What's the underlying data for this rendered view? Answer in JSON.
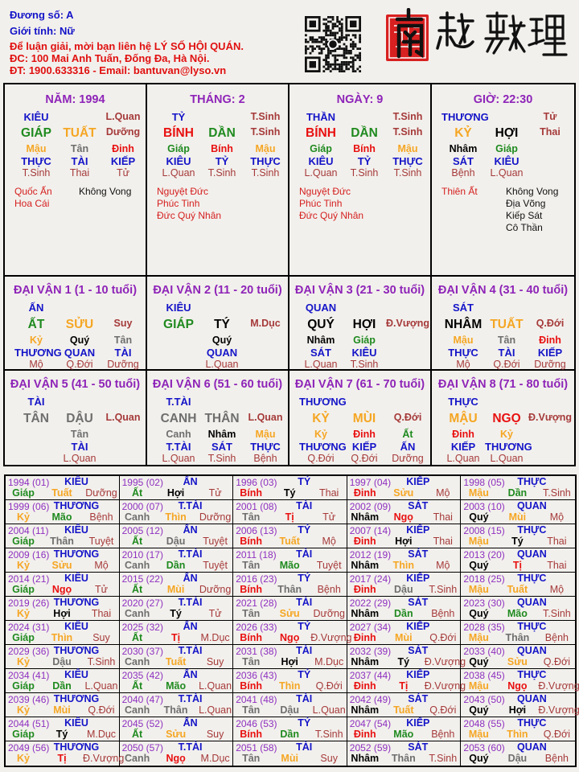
{
  "header": {
    "duong_so": "Đương số: A",
    "gioi_tinh": "Giới tính:   Nữ",
    "contact_1": "Để luận giải, mời bạn liên hệ LÝ SỐ HỘI QUÁN.",
    "contact_2": "ĐC: 100 Mai Anh Tuấn, Đống Đa, Hà Nội.",
    "contact_3": "ĐT: 1900.633316 - Email: bantuvan@lyso.vn"
  },
  "logo_text": "南越數理",
  "colors": {
    "label_blue": "#1414c8",
    "title_purple": "#8e24b8",
    "stage_darkred": "#a53a3a",
    "star_red": "#d42020",
    "wood": "#1f8a1f",
    "fire": "#e81010",
    "earth": "#f5a623",
    "metal": "#6e6e6e",
    "water": "#000000"
  },
  "pillars": [
    {
      "title": "NĂM: 1994",
      "label": "KIÊU",
      "stage_top": "L.Quan",
      "can": "GIÁP",
      "chi": "TUẤT",
      "stage": "Dưỡng",
      "hidden": [
        [
          "Mậu",
          "THỰC",
          "T.Sinh"
        ],
        [
          "Tân",
          "TÀI",
          "Thai"
        ],
        [
          "Đinh",
          "KIẾP",
          "Tử"
        ]
      ],
      "stars_left": [
        "Quốc Ấn",
        "Hoa Cái"
      ],
      "stars_right": [
        "Không Vong"
      ]
    },
    {
      "title": "THÁNG: 2",
      "label": "TỶ",
      "stage_top": "T.Sinh",
      "can": "BÍNH",
      "chi": "DẦN",
      "stage": "T.Sinh",
      "hidden": [
        [
          "Giáp",
          "KIÊU",
          "L.Quan"
        ],
        [
          "Bính",
          "TỶ",
          "T.Sinh"
        ],
        [
          "Mậu",
          "THỰC",
          "T.Sinh"
        ]
      ],
      "stars_left": [
        "Nguyệt Đức",
        "Phúc Tinh",
        "Đức Quý Nhân"
      ],
      "stars_right": []
    },
    {
      "title": "NGÀY: 9",
      "label": "THẦN",
      "stage_top": "T.Sinh",
      "can": "BÍNH",
      "chi": "DẦN",
      "stage": "T.Sinh",
      "hidden": [
        [
          "Giáp",
          "KIÊU",
          "L.Quan"
        ],
        [
          "Bính",
          "TỶ",
          "T.Sinh"
        ],
        [
          "Mậu",
          "THỰC",
          "T.Sinh"
        ]
      ],
      "stars_left": [
        "Nguyệt Đức",
        "Phúc Tinh",
        "Đức Quý Nhân"
      ],
      "stars_right": []
    },
    {
      "title": "GIỜ: 22:30",
      "label": "THƯƠNG",
      "stage_top": "Tử",
      "can": "KỶ",
      "chi": "HỢI",
      "stage": "Thai",
      "hidden": [
        [
          "Nhâm",
          "SÁT",
          "Bệnh"
        ],
        [
          "Giáp",
          "KIÊU",
          "L.Quan"
        ],
        null
      ],
      "stars_left": [
        "Thiên Ất"
      ],
      "stars_right": [
        "Không Vong",
        "Địa Võng",
        "Kiếp Sát",
        "Cô Thần"
      ]
    }
  ],
  "dai_van": [
    {
      "title": "ĐẠI VẬN 1 (1 - 10 tuổi)",
      "label": "ẤN",
      "can": "ẤT",
      "chi": "SỬU",
      "stage": "Suy",
      "hidden": [
        [
          "Kỷ",
          "THƯƠNG",
          "Mộ"
        ],
        [
          "Quý",
          "QUAN",
          "Q.Đới"
        ],
        [
          "Tân",
          "TÀI",
          "Dưỡng"
        ]
      ]
    },
    {
      "title": "ĐẠI VẬN 2 (11 - 20 tuổi)",
      "label": "KIÊU",
      "can": "GIÁP",
      "chi": "TÝ",
      "stage": "M.Dục",
      "hidden": [
        null,
        [
          "Quý",
          "QUAN",
          "L.Quan"
        ],
        null
      ]
    },
    {
      "title": "ĐẠI VẬN 3 (21 - 30 tuổi)",
      "label": "QUAN",
      "can": "QUÝ",
      "chi": "HỢI",
      "stage": "Đ.Vượng",
      "hidden": [
        [
          "Nhâm",
          "SÁT",
          "L.Quan"
        ],
        [
          "Giáp",
          "KIÊU",
          "T.Sinh"
        ],
        null
      ]
    },
    {
      "title": "ĐẠI VẬN 4 (31 - 40 tuổi)",
      "label": "SÁT",
      "can": "NHÂM",
      "chi": "TUẤT",
      "stage": "Q.Đới",
      "hidden": [
        [
          "Mậu",
          "THỰC",
          "Mộ"
        ],
        [
          "Tân",
          "TÀI",
          "Q.Đới"
        ],
        [
          "Đinh",
          "KIẾP",
          "Dưỡng"
        ]
      ]
    },
    {
      "title": "ĐẠI VẬN 5 (41 - 50 tuổi)",
      "label": "TÀI",
      "can": "TÂN",
      "chi": "DẬU",
      "stage": "L.Quan",
      "hidden": [
        null,
        [
          "Tân",
          "TÀI",
          "L.Quan"
        ],
        null
      ]
    },
    {
      "title": "ĐẠI VẬN 6 (51 - 60 tuổi)",
      "label": "T.TÀI",
      "can": "CANH",
      "chi": "THÂN",
      "stage": "L.Quan",
      "hidden": [
        [
          "Canh",
          "T.TÀI",
          "L.Quan"
        ],
        [
          "Nhâm",
          "SÁT",
          "T.Sinh"
        ],
        [
          "Mậu",
          "THỰC",
          "Bệnh"
        ]
      ]
    },
    {
      "title": "ĐẠI VẬN 7 (61 - 70 tuổi)",
      "label": "THƯƠNG",
      "can": "KỶ",
      "chi": "MÙI",
      "stage": "Q.Đới",
      "hidden": [
        [
          "Kỷ",
          "THƯƠNG",
          "Q.Đới"
        ],
        [
          "Đinh",
          "KIẾP",
          "Q.Đới"
        ],
        [
          "Ất",
          "ẤN",
          "Dưỡng"
        ]
      ]
    },
    {
      "title": "ĐẠI VẬN 8 (71 - 80 tuổi)",
      "label": "THỰC",
      "can": "MẬU",
      "chi": "NGỌ",
      "stage": "Đ.Vượng",
      "hidden": [
        [
          "Đinh",
          "KIẾP",
          "L.Quan"
        ],
        [
          "Kỷ",
          "THƯƠNG",
          "L.Quan"
        ],
        null
      ]
    }
  ],
  "years": [
    [
      "1994 (01)",
      "KIÊU",
      "Giáp",
      "Tuất",
      "Dưỡng"
    ],
    [
      "1995 (02)",
      "ẤN",
      "Ất",
      "Hợi",
      "Tử"
    ],
    [
      "1996 (03)",
      "TỶ",
      "Bính",
      "Tý",
      "Thai"
    ],
    [
      "1997 (04)",
      "KIẾP",
      "Đinh",
      "Sửu",
      "Mộ"
    ],
    [
      "1998 (05)",
      "THỰC",
      "Mậu",
      "Dần",
      "T.Sinh"
    ],
    [
      "1999 (06)",
      "THƯƠNG",
      "Kỷ",
      "Mão",
      "Bệnh"
    ],
    [
      "2000 (07)",
      "T.TÀI",
      "Canh",
      "Thìn",
      "Dưỡng"
    ],
    [
      "2001 (08)",
      "TÀI",
      "Tân",
      "Tị",
      "Tử"
    ],
    [
      "2002 (09)",
      "SÁT",
      "Nhâm",
      "Ngọ",
      "Thai"
    ],
    [
      "2003 (10)",
      "QUAN",
      "Quý",
      "Mùi",
      "Mộ"
    ],
    [
      "2004 (11)",
      "KIÊU",
      "Giáp",
      "Thân",
      "Tuyệt"
    ],
    [
      "2005 (12)",
      "ẤN",
      "Ất",
      "Dậu",
      "Tuyệt"
    ],
    [
      "2006 (13)",
      "TỶ",
      "Bính",
      "Tuất",
      "Mộ"
    ],
    [
      "2007 (14)",
      "KIẾP",
      "Đinh",
      "Hợi",
      "Thai"
    ],
    [
      "2008 (15)",
      "THỰC",
      "Mậu",
      "Tý",
      "Thai"
    ],
    [
      "2009 (16)",
      "THƯƠNG",
      "Kỷ",
      "Sửu",
      "Mộ"
    ],
    [
      "2010 (17)",
      "T.TÀI",
      "Canh",
      "Dần",
      "Tuyệt"
    ],
    [
      "2011 (18)",
      "TÀI",
      "Tân",
      "Mão",
      "Tuyệt"
    ],
    [
      "2012 (19)",
      "SÁT",
      "Nhâm",
      "Thìn",
      "Mộ"
    ],
    [
      "2013 (20)",
      "QUAN",
      "Quý",
      "Tị",
      "Thai"
    ],
    [
      "2014 (21)",
      "KIÊU",
      "Giáp",
      "Ngọ",
      "Tử"
    ],
    [
      "2015 (22)",
      "ẤN",
      "Ất",
      "Mùi",
      "Dưỡng"
    ],
    [
      "2016 (23)",
      "TỶ",
      "Bính",
      "Thân",
      "Bệnh"
    ],
    [
      "2017 (24)",
      "KIẾP",
      "Đinh",
      "Dậu",
      "T.Sinh"
    ],
    [
      "2018 (25)",
      "THỰC",
      "Mậu",
      "Tuất",
      "Mộ"
    ],
    [
      "2019 (26)",
      "THƯƠNG",
      "Kỷ",
      "Hợi",
      "Thai"
    ],
    [
      "2020 (27)",
      "T.TÀI",
      "Canh",
      "Tý",
      "Tử"
    ],
    [
      "2021 (28)",
      "TÀI",
      "Tân",
      "Sửu",
      "Dưỡng"
    ],
    [
      "2022 (29)",
      "SÁT",
      "Nhâm",
      "Dần",
      "Bệnh"
    ],
    [
      "2023 (30)",
      "QUAN",
      "Quý",
      "Mão",
      "T.Sinh"
    ],
    [
      "2024 (31)",
      "KIÊU",
      "Giáp",
      "Thìn",
      "Suy"
    ],
    [
      "2025 (32)",
      "ẤN",
      "Ất",
      "Tị",
      "M.Dục"
    ],
    [
      "2026 (33)",
      "TỶ",
      "Bính",
      "Ngọ",
      "Đ.Vượng"
    ],
    [
      "2027 (34)",
      "KIẾP",
      "Đinh",
      "Mùi",
      "Q.Đới"
    ],
    [
      "2028 (35)",
      "THỰC",
      "Mậu",
      "Thân",
      "Bệnh"
    ],
    [
      "2029 (36)",
      "THƯƠNG",
      "Kỷ",
      "Dậu",
      "T.Sinh"
    ],
    [
      "2030 (37)",
      "T.TÀI",
      "Canh",
      "Tuất",
      "Suy"
    ],
    [
      "2031 (38)",
      "TÀI",
      "Tân",
      "Hợi",
      "M.Dục"
    ],
    [
      "2032 (39)",
      "SÁT",
      "Nhâm",
      "Tý",
      "Đ.Vượng"
    ],
    [
      "2033 (40)",
      "QUAN",
      "Quý",
      "Sửu",
      "Q.Đới"
    ],
    [
      "2034 (41)",
      "KIÊU",
      "Giáp",
      "Dần",
      "L.Quan"
    ],
    [
      "2035 (42)",
      "ẤN",
      "Ất",
      "Mão",
      "L.Quan"
    ],
    [
      "2036 (43)",
      "TỶ",
      "Bính",
      "Thìn",
      "Q.Đới"
    ],
    [
      "2037 (44)",
      "KIẾP",
      "Đinh",
      "Tị",
      "Đ.Vượng"
    ],
    [
      "2038 (45)",
      "THỰC",
      "Mậu",
      "Ngọ",
      "Đ.Vượng"
    ],
    [
      "2039 (46)",
      "THƯƠNG",
      "Kỷ",
      "Mùi",
      "Q.Đới"
    ],
    [
      "2040 (47)",
      "T.TÀI",
      "Canh",
      "Thân",
      "L.Quan"
    ],
    [
      "2041 (48)",
      "TÀI",
      "Tân",
      "Dậu",
      "L.Quan"
    ],
    [
      "2042 (49)",
      "SÁT",
      "Nhâm",
      "Tuất",
      "Q.Đới"
    ],
    [
      "2043 (50)",
      "QUAN",
      "Quý",
      "Hợi",
      "Đ.Vượng"
    ],
    [
      "2044 (51)",
      "KIÊU",
      "Giáp",
      "Tý",
      "M.Dục"
    ],
    [
      "2045 (52)",
      "ẤN",
      "Ất",
      "Sửu",
      "Suy"
    ],
    [
      "2046 (53)",
      "TỶ",
      "Bính",
      "Dần",
      "T.Sinh"
    ],
    [
      "2047 (54)",
      "KIẾP",
      "Đinh",
      "Mão",
      "Bệnh"
    ],
    [
      "2048 (55)",
      "THỰC",
      "Mậu",
      "Thìn",
      "Q.Đới"
    ],
    [
      "2049 (56)",
      "THƯƠNG",
      "Kỷ",
      "Tị",
      "Đ.Vượng"
    ],
    [
      "2050 (57)",
      "T.TÀI",
      "Canh",
      "Ngọ",
      "M.Dục"
    ],
    [
      "2051 (58)",
      "TÀI",
      "Tân",
      "Mùi",
      "Suy"
    ],
    [
      "2052 (59)",
      "SÁT",
      "Nhâm",
      "Thân",
      "T.Sinh"
    ],
    [
      "2053 (60)",
      "QUAN",
      "Quý",
      "Dậu",
      "Bệnh"
    ]
  ]
}
